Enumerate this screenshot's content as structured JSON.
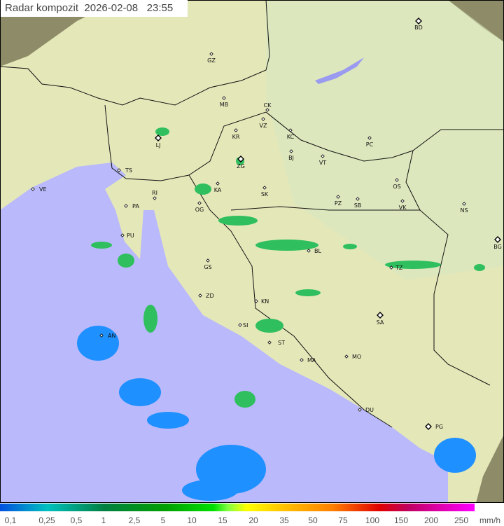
{
  "title": {
    "label": "Radar kompozit",
    "date": "2026-02-08",
    "time": "23:55"
  },
  "legend": {
    "unit": "mm/h",
    "values": [
      "0,1",
      "0,25",
      "0,5",
      "1",
      "2,5",
      "5",
      "10",
      "15",
      "20",
      "35",
      "50",
      "75",
      "100",
      "150",
      "200",
      "250"
    ]
  },
  "colors": {
    "sea": "#b9b9fb",
    "land": "#e4e7b8",
    "outside": "#8e8c68",
    "radar_low": "#1e90ff",
    "radar_mid": "#2fbf5f"
  },
  "cities": [
    {
      "code": "BD",
      "capital": true
    },
    {
      "code": "GZ"
    },
    {
      "code": "MB"
    },
    {
      "code": "CK"
    },
    {
      "code": "VZ"
    },
    {
      "code": "KR"
    },
    {
      "code": "KC"
    },
    {
      "code": "LJ",
      "capital": true
    },
    {
      "code": "ZG",
      "capital": true
    },
    {
      "code": "BJ"
    },
    {
      "code": "VT"
    },
    {
      "code": "PC"
    },
    {
      "code": "TS"
    },
    {
      "code": "VE"
    },
    {
      "code": "RI"
    },
    {
      "code": "KA"
    },
    {
      "code": "SK"
    },
    {
      "code": "OS"
    },
    {
      "code": "PA"
    },
    {
      "code": "OG"
    },
    {
      "code": "PZ"
    },
    {
      "code": "SB"
    },
    {
      "code": "VK"
    },
    {
      "code": "NS"
    },
    {
      "code": "PU"
    },
    {
      "code": "BL"
    },
    {
      "code": "BG",
      "capital": true
    },
    {
      "code": "GS"
    },
    {
      "code": "TZ"
    },
    {
      "code": "ZD"
    },
    {
      "code": "KN"
    },
    {
      "code": "SA",
      "capital": true
    },
    {
      "code": "SI"
    },
    {
      "code": "AN"
    },
    {
      "code": "ST"
    },
    {
      "code": "MA"
    },
    {
      "code": "MO"
    },
    {
      "code": "DU"
    },
    {
      "code": "PG",
      "capital": true
    }
  ]
}
